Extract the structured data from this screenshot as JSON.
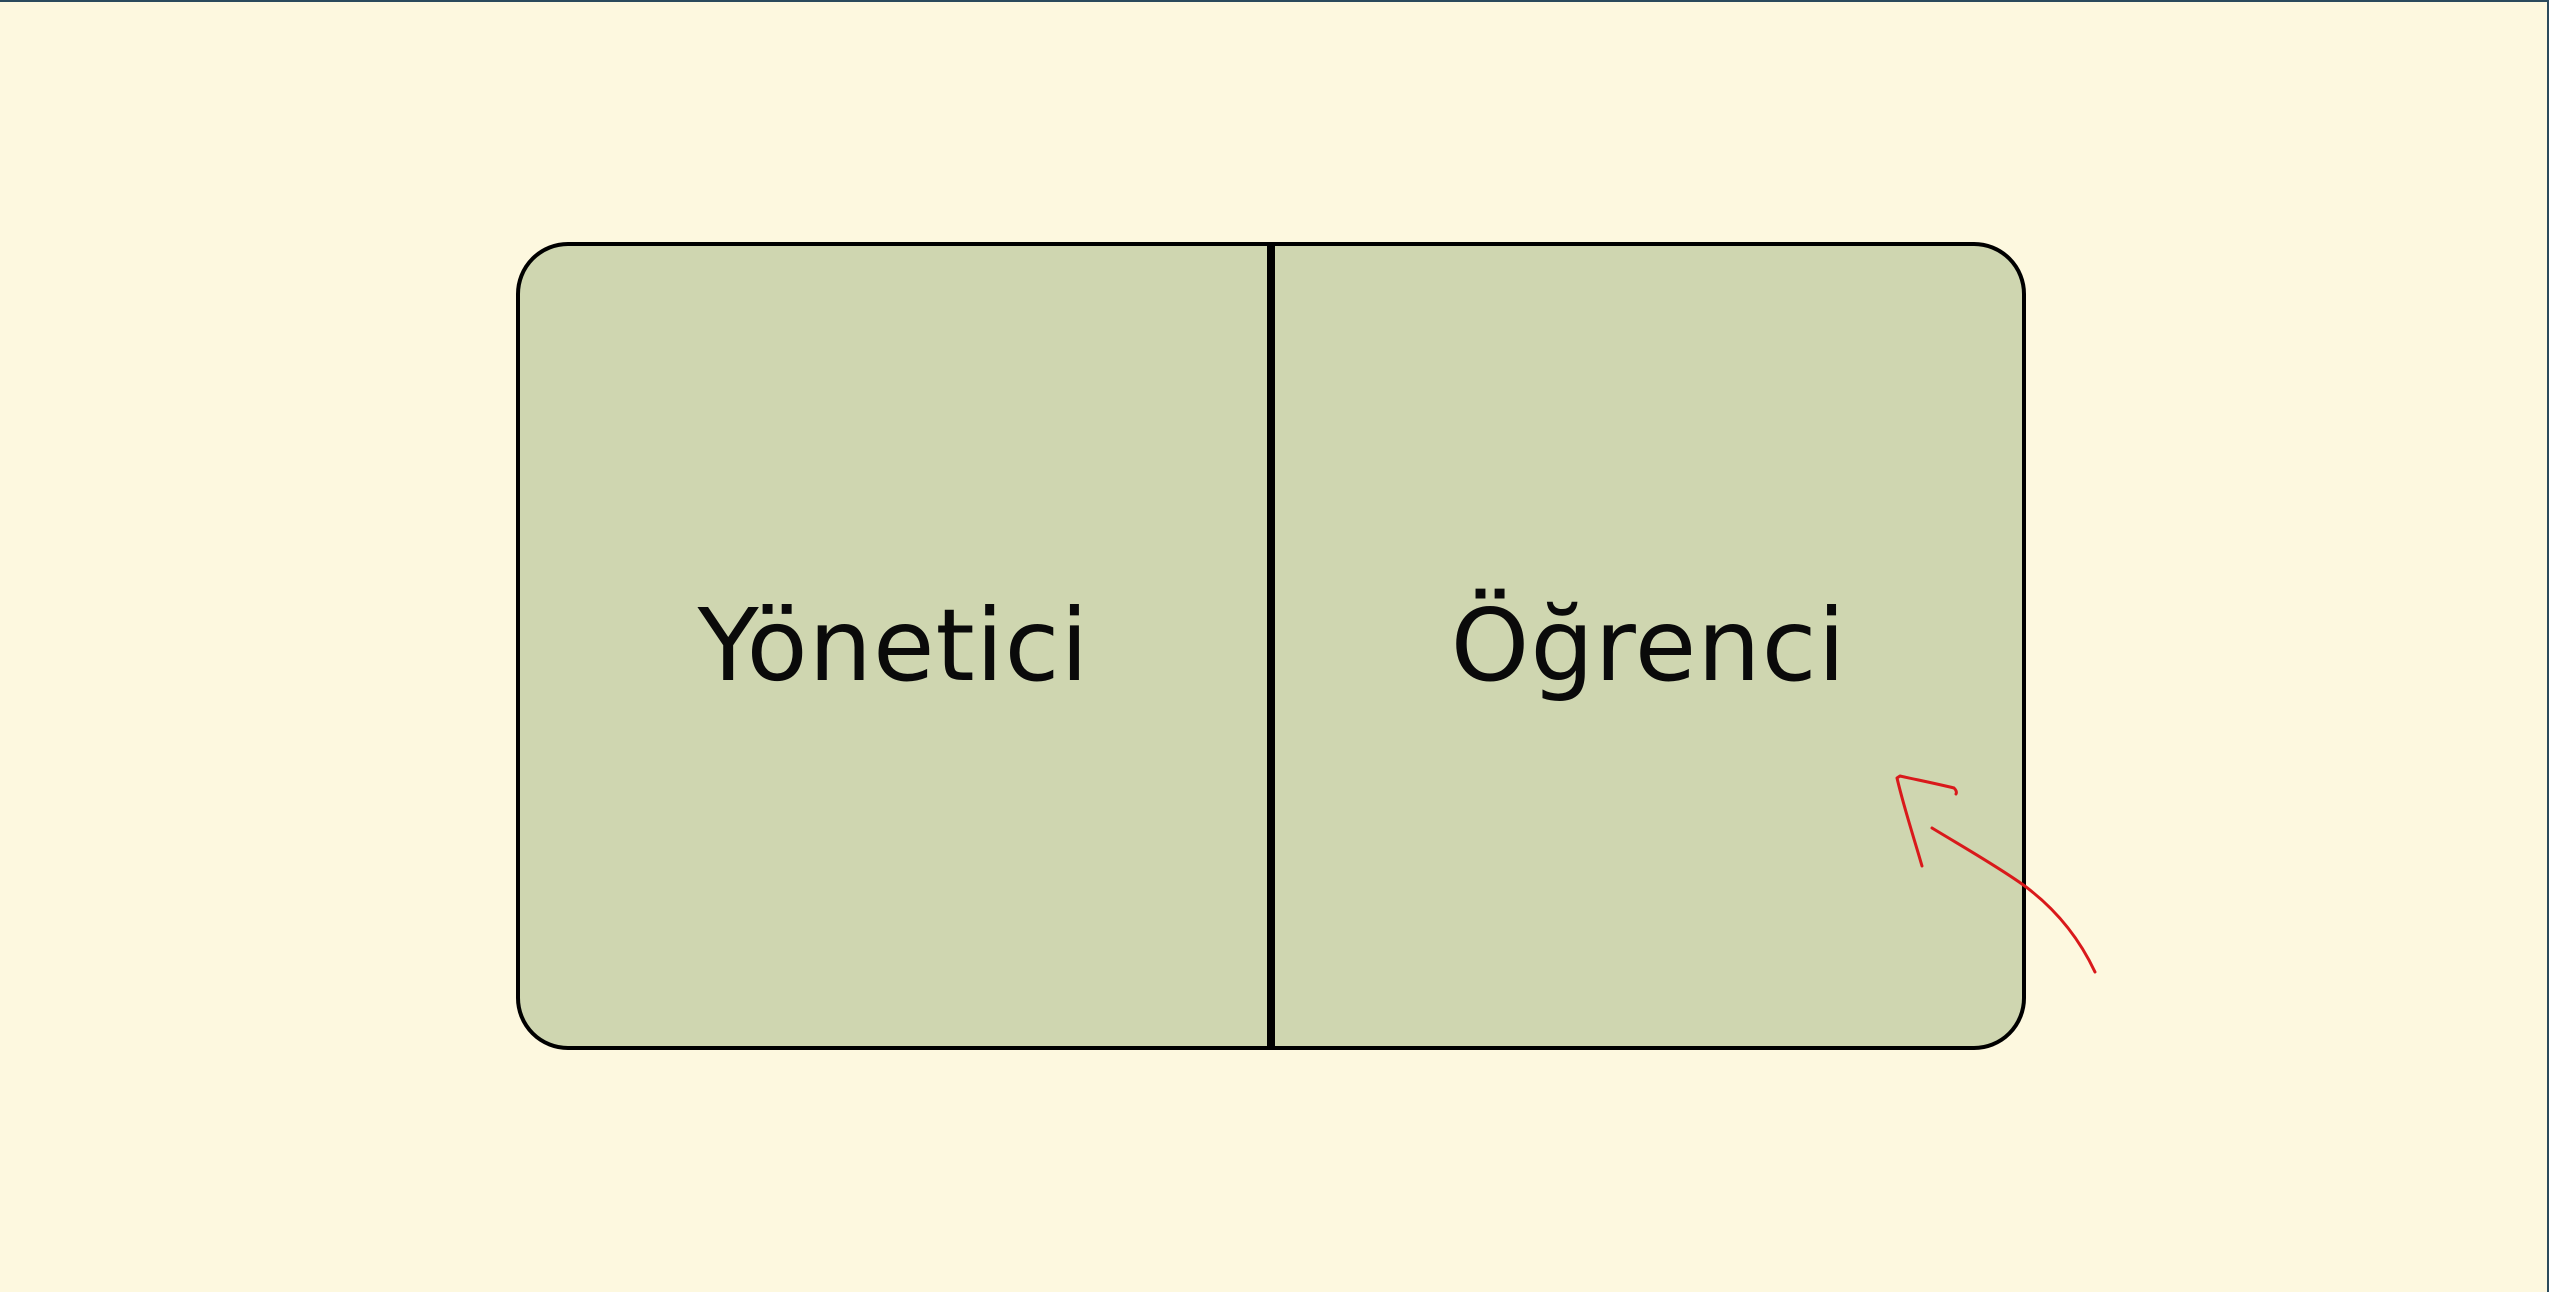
{
  "role_selection": {
    "options": [
      {
        "label": "Yönetici"
      },
      {
        "label": "Öğrenci"
      }
    ]
  },
  "colors": {
    "page_background": "#fdf8df",
    "panel_fill": "#cfd6b0",
    "panel_border": "#000000",
    "annotation_arrow": "#d9191b"
  },
  "annotation": {
    "icon": "hand-drawn-arrow-icon",
    "points_to": "Öğrenci"
  }
}
